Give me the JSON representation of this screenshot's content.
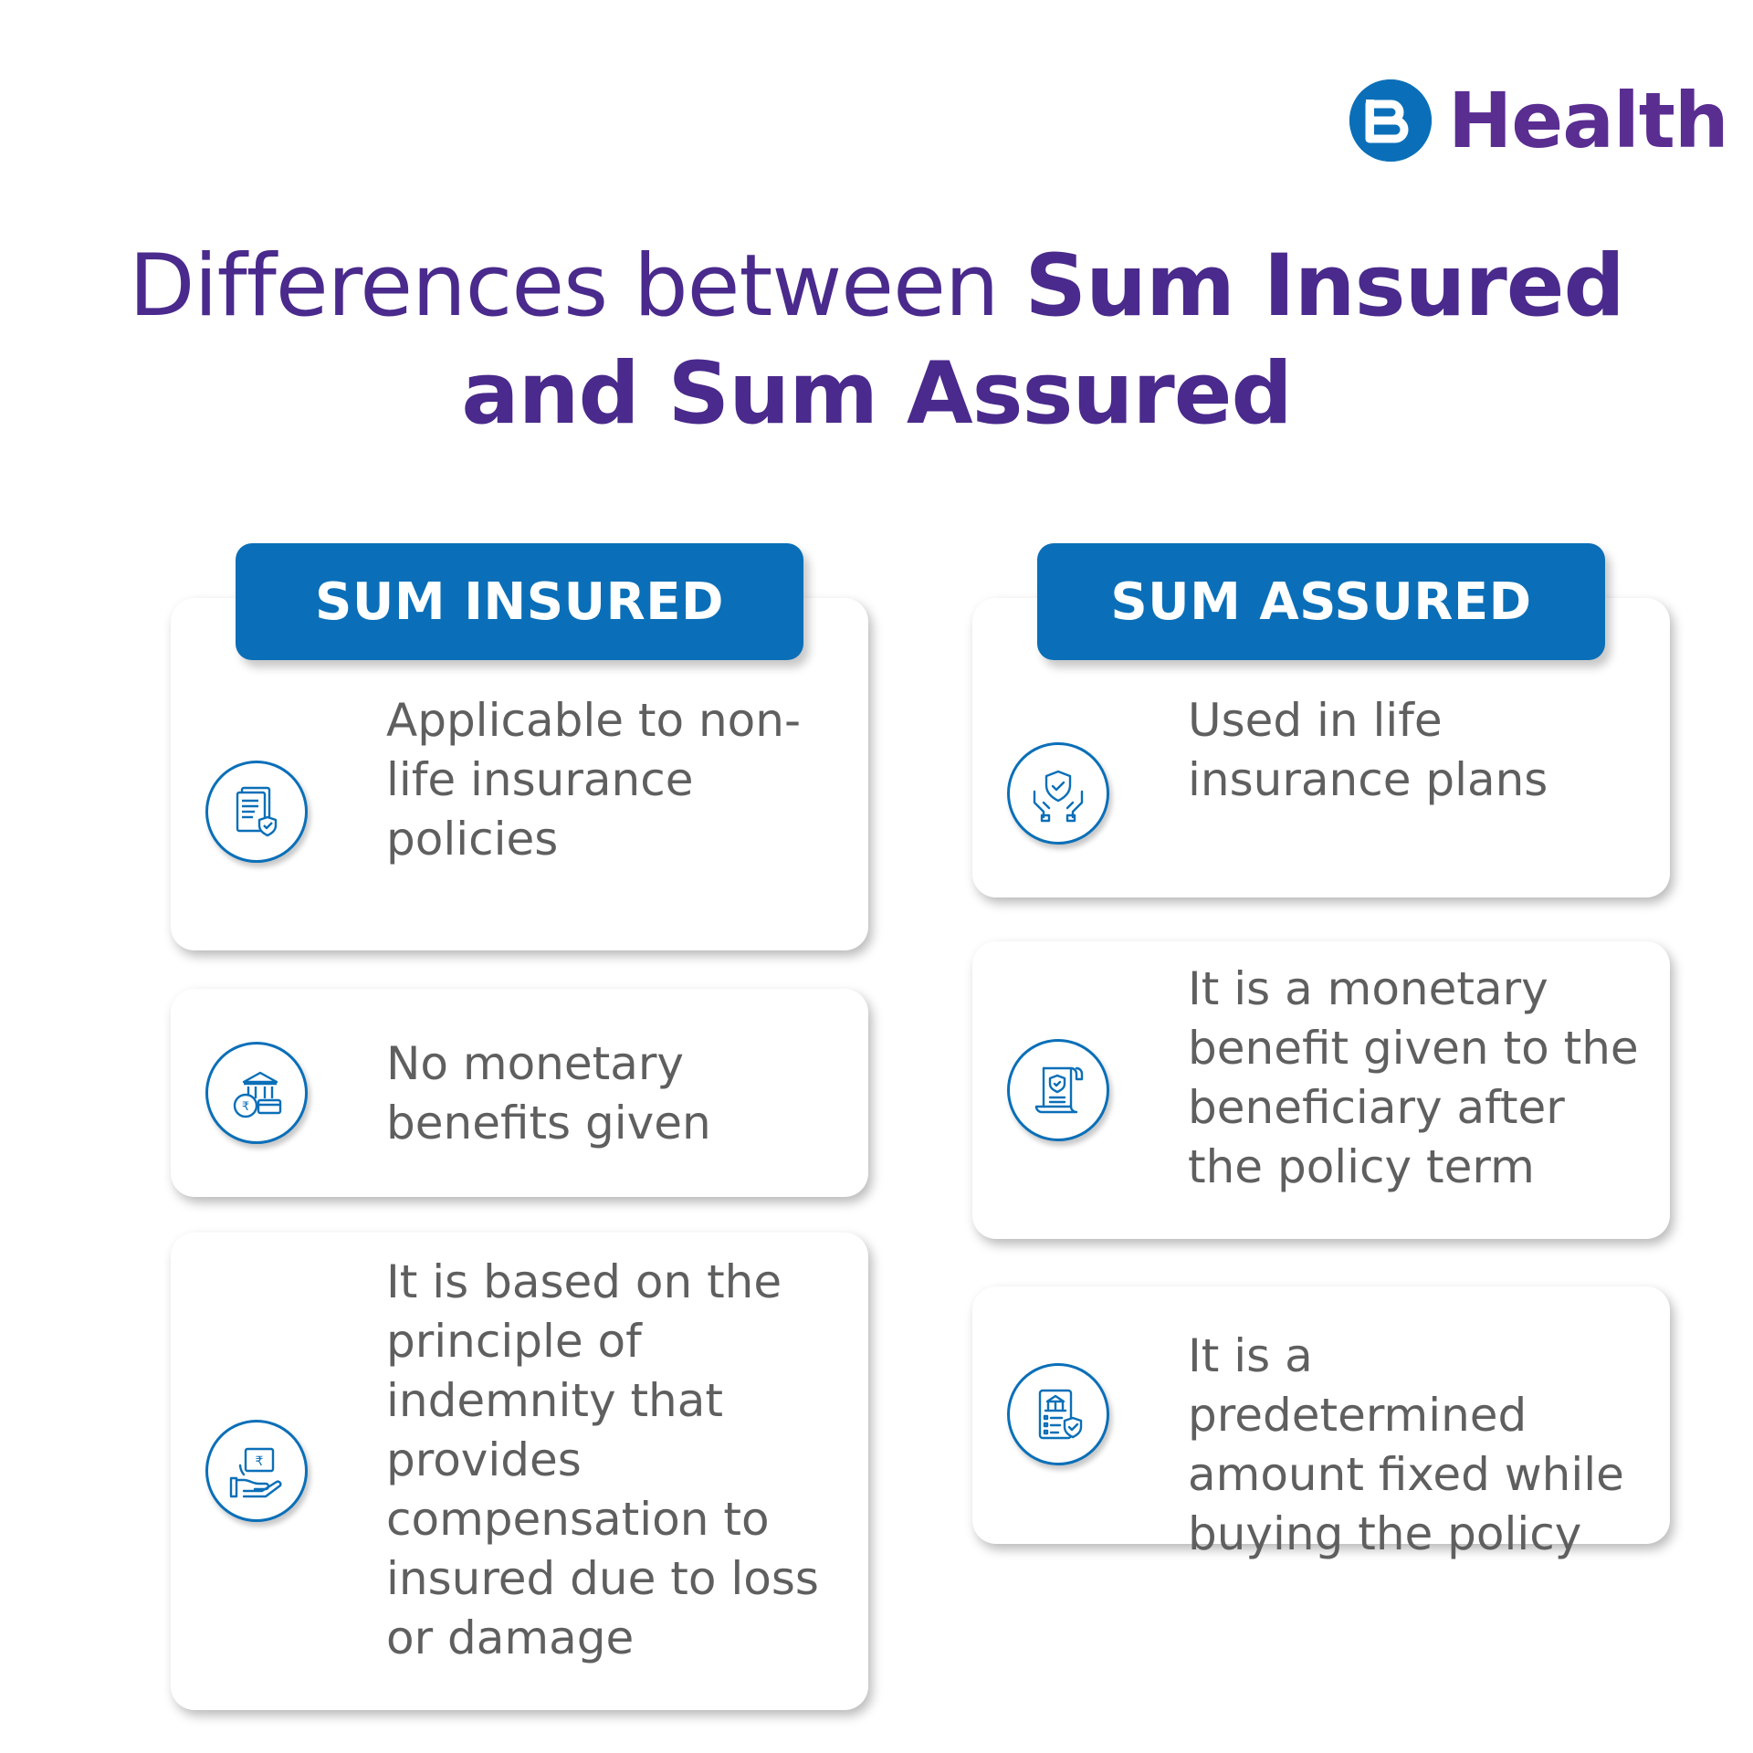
{
  "brand": {
    "name": "Health",
    "colors": {
      "logo_blue": "#0a6fb8",
      "logo_purple": "#5a2d91"
    }
  },
  "title": {
    "part1": "Differences between ",
    "part2": "Sum Insured",
    "part3": "and Sum Assured"
  },
  "colors": {
    "header_bg": "#0a6fb8",
    "title": "#4a2a8c",
    "text": "#5f5f5f"
  },
  "left": {
    "header": "SUM INSURED",
    "items": [
      {
        "icon": "documents-shield-icon",
        "text": "Applicable to non-life insurance policies"
      },
      {
        "icon": "bank-coin-card-icon",
        "text": "No monetary benefits given"
      },
      {
        "icon": "hand-rupee-note-icon",
        "text": "It is based on the principle of indemnity that provides compensation to insured due to loss or damage"
      }
    ]
  },
  "right": {
    "header": "SUM ASSURED",
    "items": [
      {
        "icon": "hands-shield-icon",
        "text": "Used in life insurance plans"
      },
      {
        "icon": "policy-scroll-icon",
        "text": "It is a monetary benefit given to the beneficiary after the policy term"
      },
      {
        "icon": "bank-checklist-icon",
        "text": "It is a predetermined amount fixed while buying the policy"
      }
    ]
  }
}
